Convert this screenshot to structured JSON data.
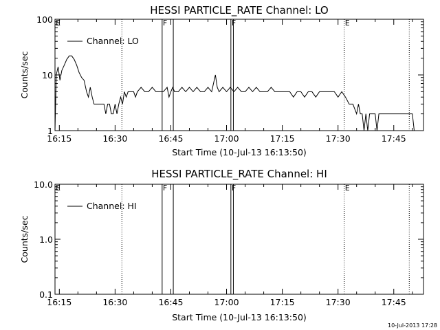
{
  "footer_timestamp": "10-Jul-2013 17:28",
  "chart_data": [
    {
      "type": "line",
      "title": "HESSI PARTICLE_RATE Channel: LO",
      "xlabel": "Start Time (10-Jul-13 16:13:50)",
      "ylabel": "Counts/sec",
      "yscale": "log",
      "ylim": [
        1,
        100
      ],
      "xlim": [
        "16:13:50",
        "17:53:00"
      ],
      "x_ticks": [
        "16:15",
        "16:30",
        "16:45",
        "17:00",
        "17:15",
        "17:30",
        "17:45"
      ],
      "y_ticks": [
        "1",
        "10",
        "100"
      ],
      "legend": "top-left",
      "grid": false,
      "series": [
        {
          "name": "Channel: LO",
          "points": [
            [
              "16:13:50",
              1
            ],
            [
              "16:14:10",
              10
            ],
            [
              "16:14:40",
              14
            ],
            [
              "16:15:10",
              8
            ],
            [
              "16:15:40",
              12
            ],
            [
              "16:16:20",
              15
            ],
            [
              "16:17:00",
              19
            ],
            [
              "16:17:40",
              22
            ],
            [
              "16:18:20",
              22
            ],
            [
              "16:19:00",
              19
            ],
            [
              "16:19:40",
              15
            ],
            [
              "16:20:20",
              11
            ],
            [
              "16:21:00",
              9
            ],
            [
              "16:21:40",
              8
            ],
            [
              "16:22:20",
              5
            ],
            [
              "16:22:50",
              4
            ],
            [
              "16:23:20",
              6
            ],
            [
              "16:23:50",
              4
            ],
            [
              "16:24:20",
              3
            ],
            [
              "16:25:00",
              3
            ],
            [
              "16:26:00",
              3
            ],
            [
              "16:27:00",
              3
            ],
            [
              "16:27:30",
              2
            ],
            [
              "16:28:00",
              3
            ],
            [
              "16:28:30",
              3
            ],
            [
              "16:29:00",
              2
            ],
            [
              "16:29:30",
              2
            ],
            [
              "16:30:00",
              3
            ],
            [
              "16:30:30",
              2
            ],
            [
              "16:31:00",
              3
            ],
            [
              "16:31:30",
              4
            ],
            [
              "16:32:00",
              3
            ],
            [
              "16:32:30",
              5
            ],
            [
              "16:33:00",
              4
            ],
            [
              "16:33:30",
              5
            ],
            [
              "16:34:00",
              5
            ],
            [
              "16:35:00",
              5
            ],
            [
              "16:35:30",
              4
            ],
            [
              "16:36:00",
              5
            ],
            [
              "16:37:00",
              6
            ],
            [
              "16:38:00",
              5
            ],
            [
              "16:39:00",
              5
            ],
            [
              "16:40:00",
              6
            ],
            [
              "16:41:00",
              5
            ],
            [
              "16:42:00",
              5
            ],
            [
              "16:43:00",
              5
            ],
            [
              "16:44:00",
              6
            ],
            [
              "16:44:30",
              4
            ],
            [
              "16:45:00",
              5
            ],
            [
              "16:45:30",
              6
            ],
            [
              "16:46:00",
              5
            ],
            [
              "16:47:00",
              5
            ],
            [
              "16:48:00",
              6
            ],
            [
              "16:49:00",
              5
            ],
            [
              "16:50:00",
              6
            ],
            [
              "16:51:00",
              5
            ],
            [
              "16:52:00",
              6
            ],
            [
              "16:53:00",
              5
            ],
            [
              "16:54:00",
              5
            ],
            [
              "16:55:00",
              6
            ],
            [
              "16:56:00",
              5
            ],
            [
              "16:57:00",
              10
            ],
            [
              "16:57:30",
              6
            ],
            [
              "16:58:00",
              5
            ],
            [
              "16:59:00",
              6
            ],
            [
              "17:00:00",
              5
            ],
            [
              "17:01:00",
              6
            ],
            [
              "17:02:00",
              5
            ],
            [
              "17:03:00",
              6
            ],
            [
              "17:04:00",
              5
            ],
            [
              "17:05:00",
              5
            ],
            [
              "17:06:00",
              6
            ],
            [
              "17:07:00",
              5
            ],
            [
              "17:08:00",
              6
            ],
            [
              "17:09:00",
              5
            ],
            [
              "17:10:00",
              5
            ],
            [
              "17:11:00",
              5
            ],
            [
              "17:12:00",
              6
            ],
            [
              "17:13:00",
              5
            ],
            [
              "17:14:00",
              5
            ],
            [
              "17:15:00",
              5
            ],
            [
              "17:16:00",
              5
            ],
            [
              "17:17:00",
              5
            ],
            [
              "17:18:00",
              4
            ],
            [
              "17:19:00",
              5
            ],
            [
              "17:20:00",
              5
            ],
            [
              "17:21:00",
              4
            ],
            [
              "17:22:00",
              5
            ],
            [
              "17:23:00",
              5
            ],
            [
              "17:24:00",
              4
            ],
            [
              "17:25:00",
              5
            ],
            [
              "17:26:00",
              5
            ],
            [
              "17:27:00",
              5
            ],
            [
              "17:28:00",
              5
            ],
            [
              "17:29:00",
              5
            ],
            [
              "17:30:00",
              4
            ],
            [
              "17:31:00",
              5
            ],
            [
              "17:32:00",
              4
            ],
            [
              "17:33:00",
              3
            ],
            [
              "17:34:00",
              3
            ],
            [
              "17:35:00",
              2
            ],
            [
              "17:35:30",
              3
            ],
            [
              "17:36:00",
              2
            ],
            [
              "17:36:30",
              2
            ],
            [
              "17:37:00",
              1
            ],
            [
              "17:37:30",
              2
            ],
            [
              "17:38:00",
              1
            ],
            [
              "17:38:30",
              2
            ],
            [
              "17:39:00",
              2
            ],
            [
              "17:40:00",
              2
            ],
            [
              "17:40:30",
              1
            ],
            [
              "17:41:00",
              2
            ],
            [
              "17:42:00",
              2
            ],
            [
              "17:43:00",
              2
            ],
            [
              "17:44:00",
              2
            ],
            [
              "17:45:00",
              2
            ],
            [
              "17:46:00",
              2
            ],
            [
              "17:47:00",
              2
            ],
            [
              "17:48:00",
              2
            ],
            [
              "17:49:00",
              2
            ],
            [
              "17:50:00",
              2
            ],
            [
              "17:50:30",
              1
            ]
          ]
        }
      ],
      "markers": [
        {
          "label": "E",
          "time": "16:13:50",
          "style": "dotted"
        },
        {
          "label": "",
          "time": "16:31:50",
          "style": "dotted"
        },
        {
          "label": "F",
          "time": "16:42:40",
          "style": "solid"
        },
        {
          "label": "",
          "time": "16:45:40",
          "style": "solid"
        },
        {
          "label": "F",
          "time": "17:01:10",
          "style": "solid"
        },
        {
          "label": "",
          "time": "17:01:50",
          "style": "solid"
        },
        {
          "label": "E",
          "time": "17:31:40",
          "style": "dotted"
        },
        {
          "label": "",
          "time": "17:49:10",
          "style": "dotted"
        }
      ]
    },
    {
      "type": "line",
      "title": "HESSI PARTICLE_RATE Channel: HI",
      "xlabel": "Start Time (10-Jul-13 16:13:50)",
      "ylabel": "Counts/sec",
      "yscale": "log",
      "ylim": [
        0.1,
        10
      ],
      "xlim": [
        "16:13:50",
        "17:53:00"
      ],
      "x_ticks": [
        "16:15",
        "16:30",
        "16:45",
        "17:00",
        "17:15",
        "17:30",
        "17:45"
      ],
      "y_ticks": [
        "0.1",
        "1.0",
        "10.0"
      ],
      "legend": "top-left",
      "grid": false,
      "series": [
        {
          "name": "Channel: HI",
          "points": []
        }
      ],
      "markers": [
        {
          "label": "E",
          "time": "16:13:50",
          "style": "dotted"
        },
        {
          "label": "",
          "time": "16:31:50",
          "style": "dotted"
        },
        {
          "label": "F",
          "time": "16:42:40",
          "style": "solid"
        },
        {
          "label": "",
          "time": "16:45:40",
          "style": "solid"
        },
        {
          "label": "F",
          "time": "17:01:10",
          "style": "solid"
        },
        {
          "label": "",
          "time": "17:01:50",
          "style": "solid"
        },
        {
          "label": "E",
          "time": "17:31:40",
          "style": "dotted"
        },
        {
          "label": "",
          "time": "17:49:10",
          "style": "dotted"
        }
      ]
    }
  ]
}
